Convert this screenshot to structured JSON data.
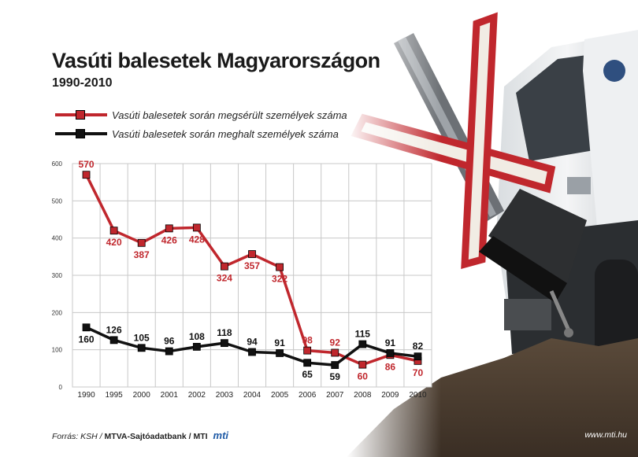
{
  "header": {
    "title": "Vasúti balesetek Magyarországon",
    "subtitle": "1990-2010"
  },
  "legend": {
    "injured": "Vasúti balesetek során megsérült személyek száma",
    "killed": "Vasúti balesetek során meghalt személyek száma"
  },
  "colors": {
    "injured": "#c0272d",
    "killed": "#111111",
    "grid": "#c8c8c8"
  },
  "chart_data": {
    "type": "line",
    "title": "Vasúti balesetek Magyarországon",
    "subtitle": "1990-2010",
    "categories": [
      "1990",
      "1995",
      "2000",
      "2001",
      "2002",
      "2003",
      "2004",
      "2005",
      "2006",
      "2007",
      "2008",
      "2009",
      "2010"
    ],
    "yticks": [
      0,
      100,
      200,
      300,
      400,
      500,
      600
    ],
    "ylim": [
      0,
      600
    ],
    "grid": true,
    "legend_position": "top-left",
    "series": [
      {
        "name": "Vasúti balesetek során megsérült személyek száma",
        "values": [
          570,
          420,
          387,
          426,
          428,
          324,
          357,
          322,
          98,
          92,
          60,
          86,
          70
        ]
      },
      {
        "name": "Vasúti balesetek során meghalt személyek száma",
        "values": [
          160,
          126,
          105,
          96,
          108,
          118,
          94,
          91,
          65,
          59,
          115,
          91,
          82
        ]
      }
    ]
  },
  "illustration": {
    "description_icons": [
      "truck-icon",
      "railway-crossing-sign-icon"
    ]
  },
  "footer": {
    "source_prefix": "Forrás: KSH /",
    "source_bold": "MTVA-Sajtóadatbank / MTI",
    "logo_text": "mti",
    "website": "www.mti.hu"
  }
}
